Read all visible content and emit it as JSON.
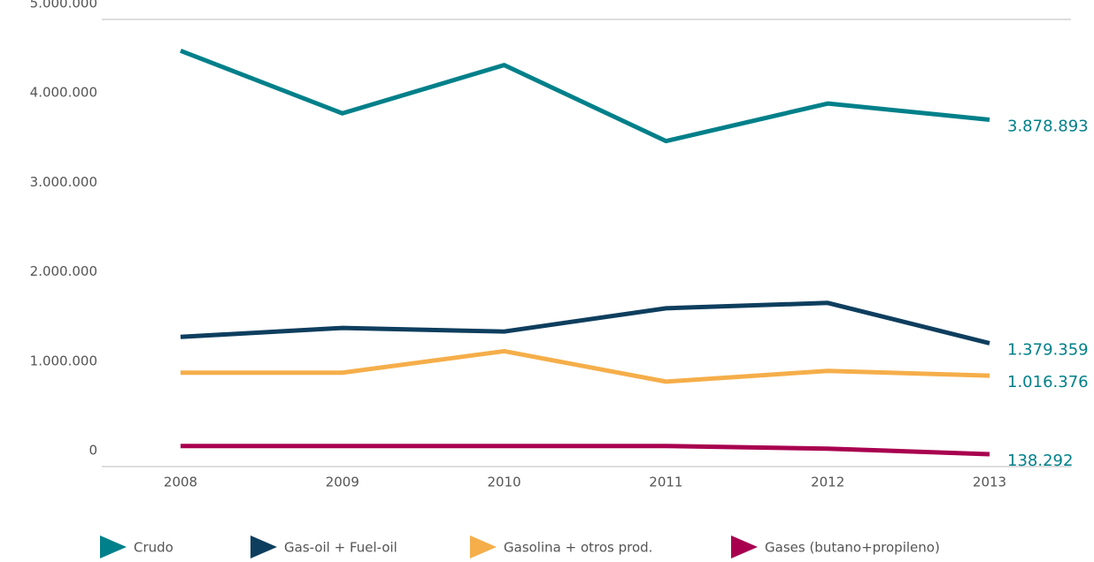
{
  "chart_data": {
    "type": "line",
    "x": [
      "2008",
      "2009",
      "2010",
      "2011",
      "2012",
      "2013"
    ],
    "series": [
      {
        "name": "Crudo",
        "color": "#00808a",
        "values": [
          4650000,
          3950000,
          4490000,
          3640000,
          4060000,
          3878893
        ],
        "value_labels": [
          null,
          null,
          null,
          null,
          null,
          "3.878.893"
        ]
      },
      {
        "name": "Gas-oil + Fuel-oil",
        "color": "#0e3e5e",
        "values": [
          1450000,
          1550000,
          1510000,
          1770000,
          1830000,
          1379359
        ],
        "value_labels": [
          null,
          null,
          null,
          null,
          null,
          "1.379.359"
        ]
      },
      {
        "name": "Gasolina + otros prod.",
        "color": "#f5ae4a",
        "values": [
          1050000,
          1050000,
          1290000,
          950000,
          1070000,
          1016376
        ],
        "value_labels": [
          null,
          null,
          null,
          null,
          null,
          "1.016.376"
        ]
      },
      {
        "name": "Gases (butano+propileno)",
        "color": "#a8004f",
        "values": [
          230000,
          230000,
          230000,
          230000,
          200000,
          138292
        ],
        "value_labels": [
          null,
          null,
          null,
          null,
          null,
          "138.292"
        ]
      }
    ],
    "ylim": [
      0,
      5000000
    ],
    "yticks": [
      0,
      {
        "value": 1000000,
        "label": "1.000.000"
      },
      {
        "value": 2000000,
        "label": "2.000.000"
      },
      {
        "value": 3000000,
        "label": "3.000.000"
      },
      {
        "value": 4000000,
        "label": "4.000.000"
      },
      {
        "value": 5000000,
        "label": "5.000.000"
      }
    ],
    "value_label_color": "#00808a",
    "legend": "bottom"
  }
}
